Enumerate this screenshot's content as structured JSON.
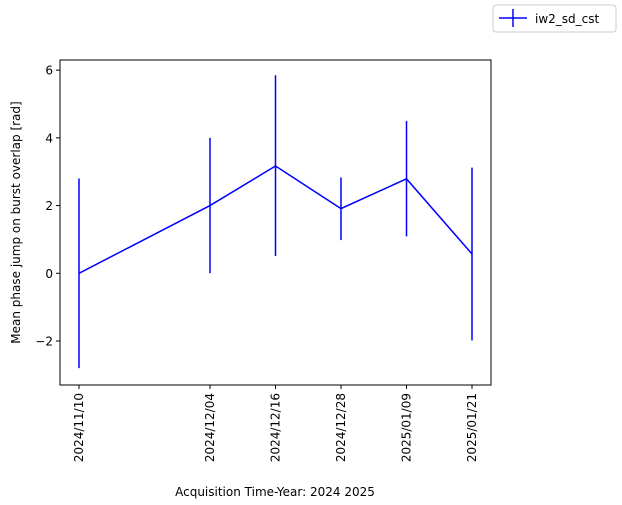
{
  "chart_data": {
    "type": "line",
    "title": "",
    "xlabel": "Acquisition Time-Year: 2024 2025",
    "ylabel": "Mean phase jump on burst overlap [rad]",
    "x": [
      "2024/11/10",
      "2024/12/04",
      "2024/12/16",
      "2024/12/28",
      "2025/01/09",
      "2025/01/21"
    ],
    "x_tick_labels": [
      "2024/11/10",
      "2024/12/04",
      "2024/12/16",
      "2024/12/28",
      "2025/01/09",
      "2025/01/21"
    ],
    "ylim": [
      -3.3,
      6.3
    ],
    "y_ticks": [
      -2,
      0,
      2,
      4,
      6
    ],
    "y_tick_labels": [
      "−2",
      "0",
      "2",
      "4",
      "6"
    ],
    "grid": false,
    "legend_position": "top-right outside",
    "series": [
      {
        "name": "iw2_sd_cst",
        "color": "#0000ff",
        "values": [
          0.0,
          2.0,
          3.17,
          1.91,
          2.79,
          0.57
        ],
        "error_low": [
          -2.8,
          0.0,
          0.51,
          0.98,
          1.09,
          -1.98
        ],
        "error_high": [
          2.8,
          4.0,
          5.85,
          2.83,
          4.5,
          3.12
        ]
      }
    ]
  }
}
